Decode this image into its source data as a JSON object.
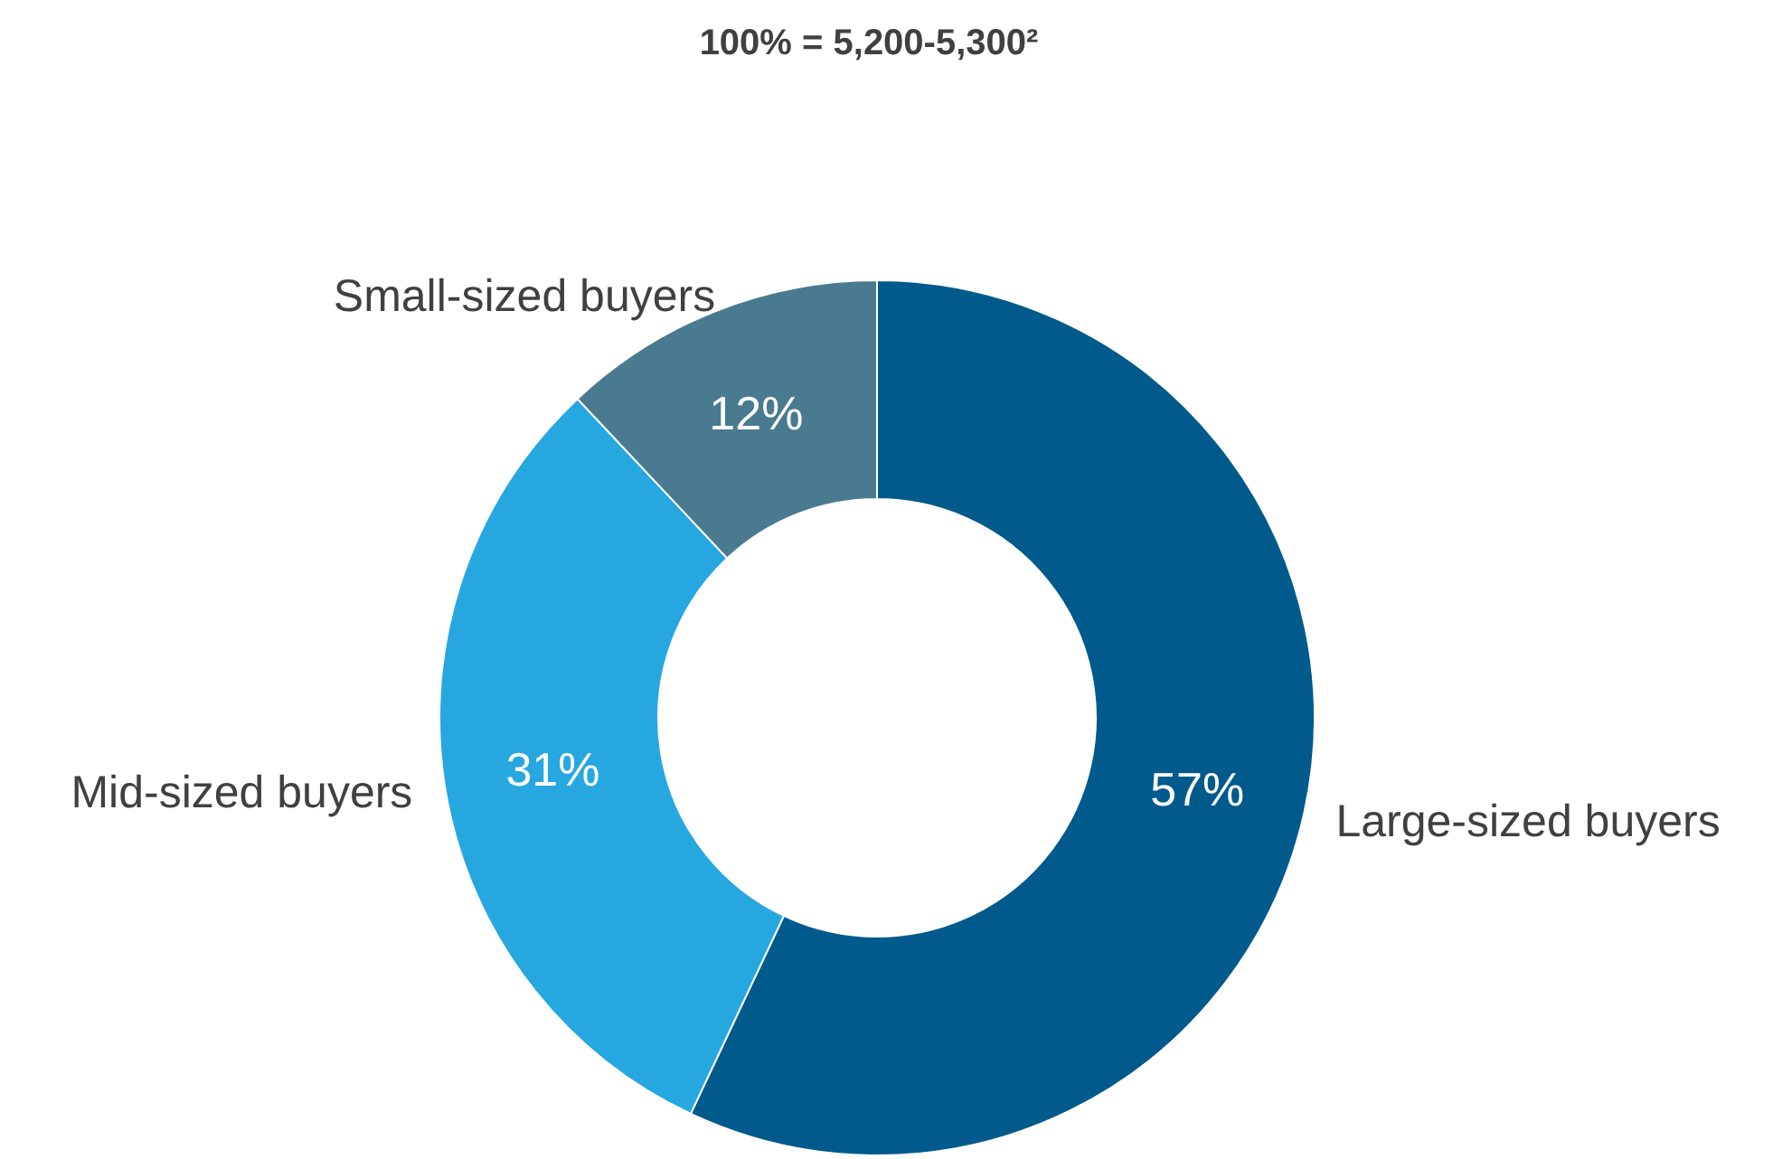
{
  "chart_data": {
    "type": "donut",
    "title": "100% = 5,200-5,300²",
    "categories": [
      "Large-sized buyers",
      "Mid-sized buyers",
      "Small-sized buyers"
    ],
    "values": [
      57,
      31,
      12
    ],
    "colors": [
      "#005a8b",
      "#27a7e0",
      "#4a7a90"
    ],
    "value_labels": [
      "57%",
      "31%",
      "12%"
    ],
    "legend": false
  }
}
